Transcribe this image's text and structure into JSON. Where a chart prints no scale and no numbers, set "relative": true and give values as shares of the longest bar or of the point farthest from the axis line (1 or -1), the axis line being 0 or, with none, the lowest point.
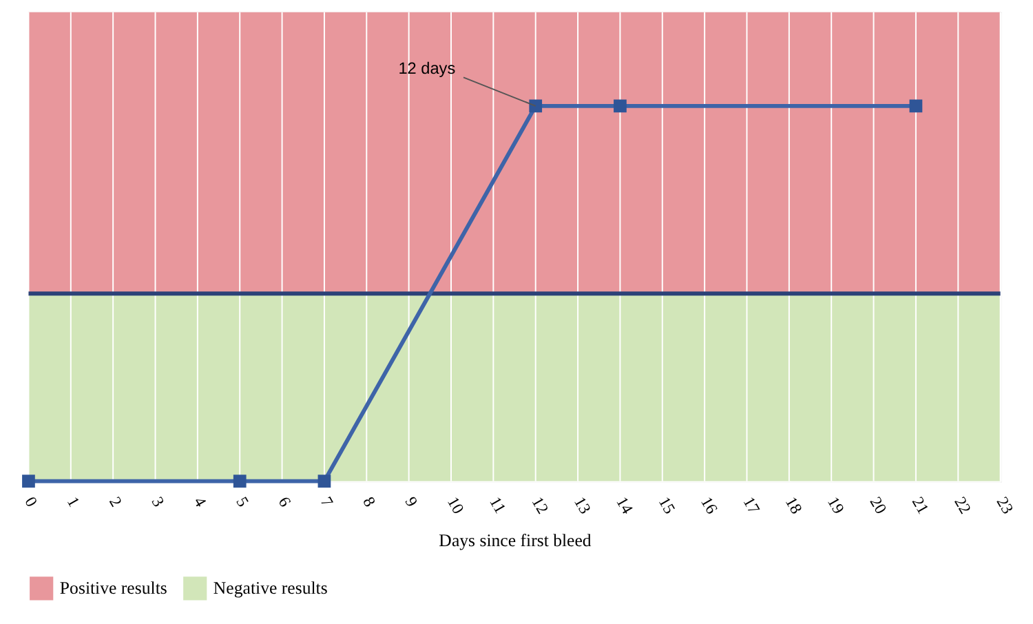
{
  "chart_data": {
    "type": "line",
    "relative": true,
    "xlabel": "Days since first bleed",
    "x": [
      0,
      5,
      7,
      12,
      14,
      21
    ],
    "series": [
      {
        "color": "#3e64a8",
        "values": [
          0,
          0,
          0,
          1,
          1,
          1
        ]
      }
    ],
    "xlim": [
      0,
      23
    ],
    "xticks": [
      0,
      1,
      2,
      3,
      4,
      5,
      6,
      7,
      8,
      9,
      10,
      11,
      12,
      13,
      14,
      15,
      16,
      17,
      18,
      19,
      20,
      21,
      22,
      23
    ],
    "marker": "square",
    "line_style": "solid",
    "grid": true,
    "legend": "bottom left",
    "bands": [
      {
        "axis": "y",
        "from": 0.5,
        "to": 1.25,
        "label": "Positive results",
        "color": "#e8979c"
      },
      {
        "axis": "y",
        "from": 0,
        "to": 0.5,
        "label": "Negative results",
        "color": "#d2e6b9"
      }
    ],
    "ref_lines": [
      {
        "axis": "y",
        "value": 0.5,
        "color": "#2c4278",
        "line_style": "solid"
      }
    ],
    "annotations": [
      {
        "text": "12 days",
        "x": 12,
        "y": 1
      }
    ]
  }
}
